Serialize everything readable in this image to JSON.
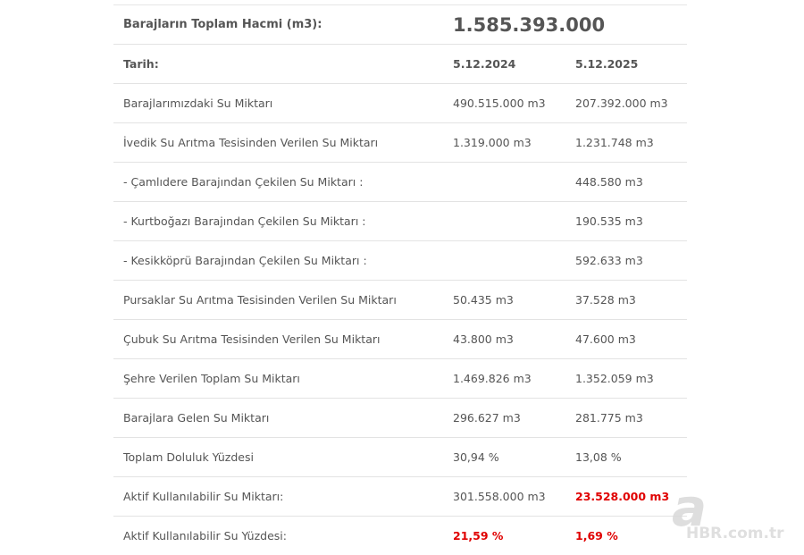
{
  "total_capacity": {
    "label": "Barajların Toplam Hacmi (m3):",
    "value": "1.585.393.000"
  },
  "header": {
    "label": "Tarih:",
    "date1": "5.12.2024",
    "date2": "5.12.2025"
  },
  "rows": [
    {
      "label": "Barajlarımızdaki Su Miktarı",
      "v1": "490.515.000 m3",
      "v2": "207.392.000 m3"
    },
    {
      "label": "İvedik Su Arıtma Tesisinden Verilen Su Miktarı",
      "v1": "1.319.000 m3",
      "v2": "1.231.748 m3"
    },
    {
      "label": "- Çamlıdere Barajından Çekilen Su Miktarı :",
      "v1": "",
      "v2": "448.580 m3"
    },
    {
      "label": "- Kurtboğazı Barajından Çekilen Su Miktarı :",
      "v1": "",
      "v2": "190.535 m3"
    },
    {
      "label": "- Kesikköprü Barajından Çekilen Su Miktarı :",
      "v1": "",
      "v2": "592.633 m3"
    },
    {
      "label": "Pursaklar Su Arıtma Tesisinden Verilen Su Miktarı",
      "v1": "50.435 m3",
      "v2": "37.528 m3"
    },
    {
      "label": "Çubuk Su Arıtma Tesisinden Verilen Su Miktarı",
      "v1": "43.800 m3",
      "v2": "47.600 m3"
    },
    {
      "label": "Şehre Verilen Toplam Su Miktarı",
      "v1": "1.469.826 m3",
      "v2": "1.352.059 m3"
    },
    {
      "label": "Barajlara Gelen Su Miktarı",
      "v1": "296.627 m3",
      "v2": "281.775 m3"
    },
    {
      "label": "Toplam Doluluk Yüzdesi",
      "v1": "30,94 %",
      "v2": "13,08 %"
    },
    {
      "label": "Aktif Kullanılabilir Su Miktarı:",
      "v1": "301.558.000 m3",
      "v2": "23.528.000 m3"
    },
    {
      "label": "Aktif Kullanılabilir Su Yüzdesi:",
      "v1": "21,59 %",
      "v2": "1,69 %"
    }
  ],
  "watermark": {
    "logo_letter": "a",
    "text": "HBR.com.tr",
    "icon": "a-haber-logo-icon"
  },
  "colors": {
    "text": "#555555",
    "highlight_red": "#e00000",
    "divider": "#e3e3e3"
  }
}
